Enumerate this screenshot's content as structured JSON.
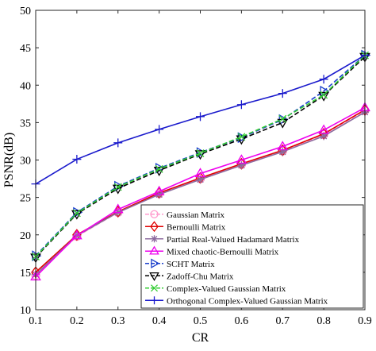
{
  "chart_data": {
    "type": "line",
    "xlabel": "CR",
    "ylabel": "PSNR(dB)",
    "xlim": [
      0.1,
      0.9
    ],
    "ylim": [
      10,
      50
    ],
    "x": [
      0.1,
      0.2,
      0.3,
      0.4,
      0.5,
      0.6,
      0.7,
      0.8,
      0.9
    ],
    "x_tick_labels": [
      "0.1",
      "0.2",
      "0.3",
      "0.4",
      "0.5",
      "0.6",
      "0.7",
      "0.8",
      "0.9"
    ],
    "y_ticks": [
      10,
      15,
      20,
      25,
      30,
      35,
      40,
      45,
      50
    ],
    "y_tick_labels": [
      "10",
      "15",
      "20",
      "25",
      "30",
      "35",
      "40",
      "45",
      "50"
    ],
    "grid": false,
    "legend_placement": "bottom-right",
    "series": [
      {
        "name": "Gaussian Matrix",
        "color": "#ff99cc",
        "marker": "circle",
        "dash": "dashed",
        "values": [
          14.6,
          19.8,
          23.0,
          25.5,
          27.5,
          29.4,
          31.2,
          33.4,
          36.6
        ]
      },
      {
        "name": "Bernoulli Matrix",
        "color": "#e00000",
        "marker": "diamond",
        "dash": "solid",
        "values": [
          15.0,
          20.0,
          23.1,
          25.6,
          27.6,
          29.5,
          31.3,
          33.5,
          36.7
        ]
      },
      {
        "name": "Partial Real-Valued Hadamard Matrix",
        "color": "#8c6a9e",
        "marker": "star",
        "dash": "solid",
        "values": [
          14.7,
          19.9,
          23.0,
          25.4,
          27.4,
          29.3,
          31.1,
          33.2,
          36.4
        ]
      },
      {
        "name": "Mixed chaotic-Bernoulli Matrix",
        "color": "#ee00ee",
        "marker": "triangle-up",
        "dash": "solid",
        "values": [
          14.4,
          19.9,
          23.4,
          25.8,
          28.2,
          30.0,
          31.8,
          34.0,
          37.0
        ]
      },
      {
        "name": "SCHT Matrix",
        "color": "#1a3fcc",
        "marker": "triangle-right",
        "dash": "dashed",
        "values": [
          17.2,
          23.0,
          26.5,
          28.9,
          31.0,
          33.0,
          35.4,
          39.2,
          44.0
        ]
      },
      {
        "name": "Zadoff-Chu Matrix",
        "color": "#000000",
        "marker": "triangle-down",
        "dash": "dashed",
        "values": [
          17.0,
          22.8,
          26.2,
          28.6,
          30.8,
          32.8,
          35.0,
          38.6,
          43.8
        ]
      },
      {
        "name": "Complex-Valued Gaussian Matrix",
        "color": "#33cc33",
        "marker": "x",
        "dash": "dashed",
        "values": [
          17.1,
          22.9,
          26.4,
          28.8,
          30.9,
          33.1,
          35.5,
          38.7,
          44.0
        ]
      },
      {
        "name": "Orthogonal Complex-Valued Gaussian Matrix",
        "color": "#1a1acc",
        "marker": "plus",
        "dash": "solid",
        "values": [
          26.8,
          30.1,
          32.3,
          34.1,
          35.8,
          37.4,
          38.9,
          40.8,
          44.0
        ]
      }
    ]
  }
}
